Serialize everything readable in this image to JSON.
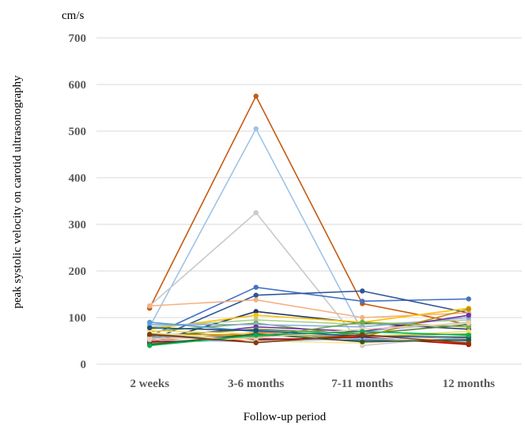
{
  "chart_data": {
    "type": "line",
    "unit_label": "cm/s",
    "ylabel": "peak systolic velocity on carotid ultrasonography",
    "xlabel": "Follow-up period",
    "categories": [
      "2 weeks",
      "3-6 months",
      "7-11 months",
      "12 months"
    ],
    "ylim": [
      0,
      700
    ],
    "yticks": [
      0,
      100,
      200,
      300,
      400,
      500,
      600,
      700
    ],
    "grid": true,
    "legend": "none",
    "series": [
      {
        "color": "#c55a11",
        "values": [
          120,
          575,
          130,
          85
        ]
      },
      {
        "color": "#9dc3e6",
        "values": [
          80,
          505,
          70,
          90
        ]
      },
      {
        "color": "#c9c9c9",
        "values": [
          125,
          325,
          40,
          60
        ]
      },
      {
        "color": "#4472c4",
        "values": [
          60,
          165,
          135,
          140
        ]
      },
      {
        "color": "#2f5597",
        "values": [
          50,
          148,
          157,
          110
        ]
      },
      {
        "color": "#f4b183",
        "values": [
          125,
          138,
          100,
          110
        ]
      },
      {
        "color": "#203864",
        "values": [
          45,
          113,
          88,
          75
        ]
      },
      {
        "color": "#ffc000",
        "values": [
          75,
          105,
          90,
          120
        ]
      },
      {
        "color": "#a9d18e",
        "values": [
          80,
          95,
          85,
          95
        ]
      },
      {
        "color": "#70ad47",
        "values": [
          70,
          88,
          60,
          65
        ]
      },
      {
        "color": "#8faadc",
        "values": [
          85,
          85,
          80,
          100
        ]
      },
      {
        "color": "#7030a0",
        "values": [
          55,
          80,
          70,
          105
        ]
      },
      {
        "color": "#548235",
        "values": [
          60,
          75,
          65,
          85
        ]
      },
      {
        "color": "#5b9bd5",
        "values": [
          90,
          70,
          50,
          55
        ]
      },
      {
        "color": "#ed7d31",
        "values": [
          50,
          68,
          55,
          45
        ]
      },
      {
        "color": "#ffd966",
        "values": [
          72,
          65,
          60,
          70
        ]
      },
      {
        "color": "#bf9000",
        "values": [
          65,
          62,
          58,
          118
        ]
      },
      {
        "color": "#a5a5a5",
        "values": [
          58,
          60,
          62,
          55
        ]
      },
      {
        "color": "#70ad47",
        "values": [
          45,
          58,
          90,
          80
        ]
      },
      {
        "color": "#2e75b6",
        "values": [
          62,
          55,
          52,
          50
        ]
      },
      {
        "color": "#c00000",
        "values": [
          48,
          52,
          58,
          42
        ]
      },
      {
        "color": "#ffe699",
        "values": [
          68,
          50,
          45,
          60
        ]
      },
      {
        "color": "#9dc3e6",
        "values": [
          52,
          48,
          55,
          48
        ]
      },
      {
        "color": "#375623",
        "values": [
          42,
          65,
          48,
          52
        ]
      },
      {
        "color": "#f8cbad",
        "values": [
          55,
          56,
          75,
          88
        ]
      },
      {
        "color": "#1f4e79",
        "values": [
          78,
          72,
          60,
          58
        ]
      },
      {
        "color": "#00b050",
        "values": [
          40,
          62,
          70,
          62
        ]
      },
      {
        "color": "#843c0c",
        "values": [
          64,
          46,
          63,
          45
        ]
      }
    ]
  }
}
